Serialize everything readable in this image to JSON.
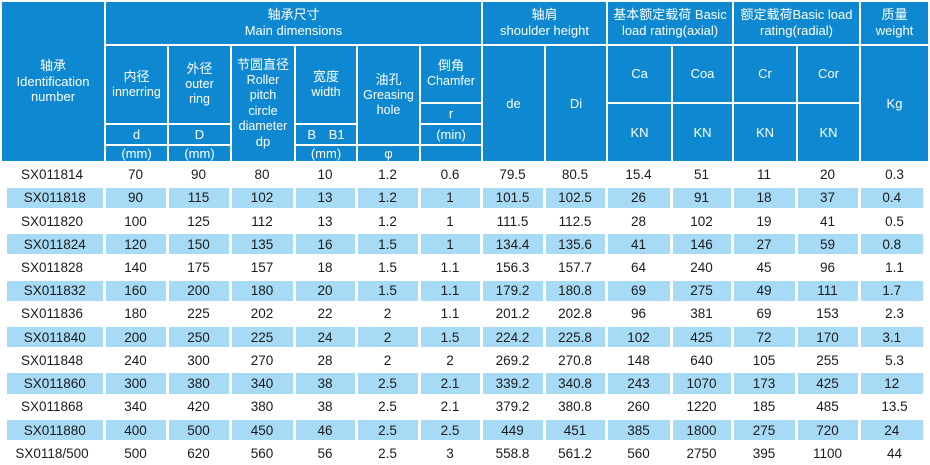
{
  "colors": {
    "header_blue": "#0d88d1",
    "row_alt_blue": "#a7daf5",
    "header_text": "#ffffff",
    "body_text": "#1b1b1b"
  },
  "header": {
    "id_col": {
      "zh": "轴承",
      "en_line1": "Identification",
      "en_line2": "number"
    },
    "groups": {
      "main_dimensions": {
        "zh": "轴承尺寸",
        "en": "Main dimensions"
      },
      "shoulder_height": {
        "zh": "轴肩",
        "en": "shoulder height"
      },
      "axial_rating": {
        "line1": "基本额定载荷 Basic",
        "line2": "load rating(axial)"
      },
      "radial_rating": {
        "line1": "额定载荷Basic load",
        "line2": "rating(radial)"
      },
      "weight": {
        "zh": "质量",
        "en": "weight"
      }
    },
    "inner": {
      "zh": "内径",
      "en": "innerring",
      "sym": "d",
      "unit": "(mm)"
    },
    "outer": {
      "zh": "外径",
      "en": "outer ring",
      "sym": "D",
      "unit": "(mm)"
    },
    "pitch": {
      "zh": "节圆直径",
      "en": "Roller pitch circle diameter",
      "sym": "dp"
    },
    "width": {
      "zh": "宽度",
      "en": "width",
      "sym": "B B1",
      "unit": "(mm)"
    },
    "oil": {
      "zh": "油孔",
      "en": "Greasing hole",
      "sym": "φ"
    },
    "chamfer": {
      "zh": "倒角",
      "en": "Chamfer",
      "sym": "r",
      "unit": "(min)"
    },
    "de": "de",
    "di": "Di",
    "ca": {
      "sym": "Ca",
      "unit": "KN"
    },
    "coa": {
      "sym": "Coa",
      "unit": "KN"
    },
    "cr": {
      "sym": "Cr",
      "unit": "KN"
    },
    "cor": {
      "sym": "Cor",
      "unit": "KN"
    },
    "kg": "Kg"
  },
  "rows": [
    [
      "SX011814",
      "70",
      "90",
      "80",
      "10",
      "1.2",
      "0.6",
      "79.5",
      "80.5",
      "15.4",
      "51",
      "11",
      "20",
      "0.3"
    ],
    [
      "SX011818",
      "90",
      "115",
      "102",
      "13",
      "1.2",
      "1",
      "101.5",
      "102.5",
      "26",
      "91",
      "18",
      "37",
      "0.4"
    ],
    [
      "SX011820",
      "100",
      "125",
      "112",
      "13",
      "1.2",
      "1",
      "111.5",
      "112.5",
      "28",
      "102",
      "19",
      "41",
      "0.5"
    ],
    [
      "SX011824",
      "120",
      "150",
      "135",
      "16",
      "1.5",
      "1",
      "134.4",
      "135.6",
      "41",
      "146",
      "27",
      "59",
      "0.8"
    ],
    [
      "SX011828",
      "140",
      "175",
      "157",
      "18",
      "1.5",
      "1.1",
      "156.3",
      "157.7",
      "64",
      "240",
      "45",
      "96",
      "1.1"
    ],
    [
      "SX011832",
      "160",
      "200",
      "180",
      "20",
      "1.5",
      "1.1",
      "179.2",
      "180.8",
      "69",
      "275",
      "49",
      "111",
      "1.7"
    ],
    [
      "SX011836",
      "180",
      "225",
      "202",
      "22",
      "2",
      "1.1",
      "201.2",
      "202.8",
      "96",
      "381",
      "69",
      "153",
      "2.3"
    ],
    [
      "SX011840",
      "200",
      "250",
      "225",
      "24",
      "2",
      "1.5",
      "224.2",
      "225.8",
      "102",
      "425",
      "72",
      "170",
      "3.1"
    ],
    [
      "SX011848",
      "240",
      "300",
      "270",
      "28",
      "2",
      "2",
      "269.2",
      "270.8",
      "148",
      "640",
      "105",
      "255",
      "5.3"
    ],
    [
      "SX011860",
      "300",
      "380",
      "340",
      "38",
      "2.5",
      "2.1",
      "339.2",
      "340.8",
      "243",
      "1070",
      "173",
      "425",
      "12"
    ],
    [
      "SX011868",
      "340",
      "420",
      "380",
      "38",
      "2.5",
      "2.1",
      "379.2",
      "380.8",
      "260",
      "1220",
      "185",
      "485",
      "13.5"
    ],
    [
      "SX011880",
      "400",
      "500",
      "450",
      "46",
      "2.5",
      "2.5",
      "449",
      "451",
      "385",
      "1800",
      "275",
      "720",
      "24"
    ],
    [
      "SX0118/500",
      "500",
      "620",
      "560",
      "56",
      "2.5",
      "3",
      "558.8",
      "561.2",
      "560",
      "2750",
      "395",
      "1100",
      "44"
    ]
  ]
}
